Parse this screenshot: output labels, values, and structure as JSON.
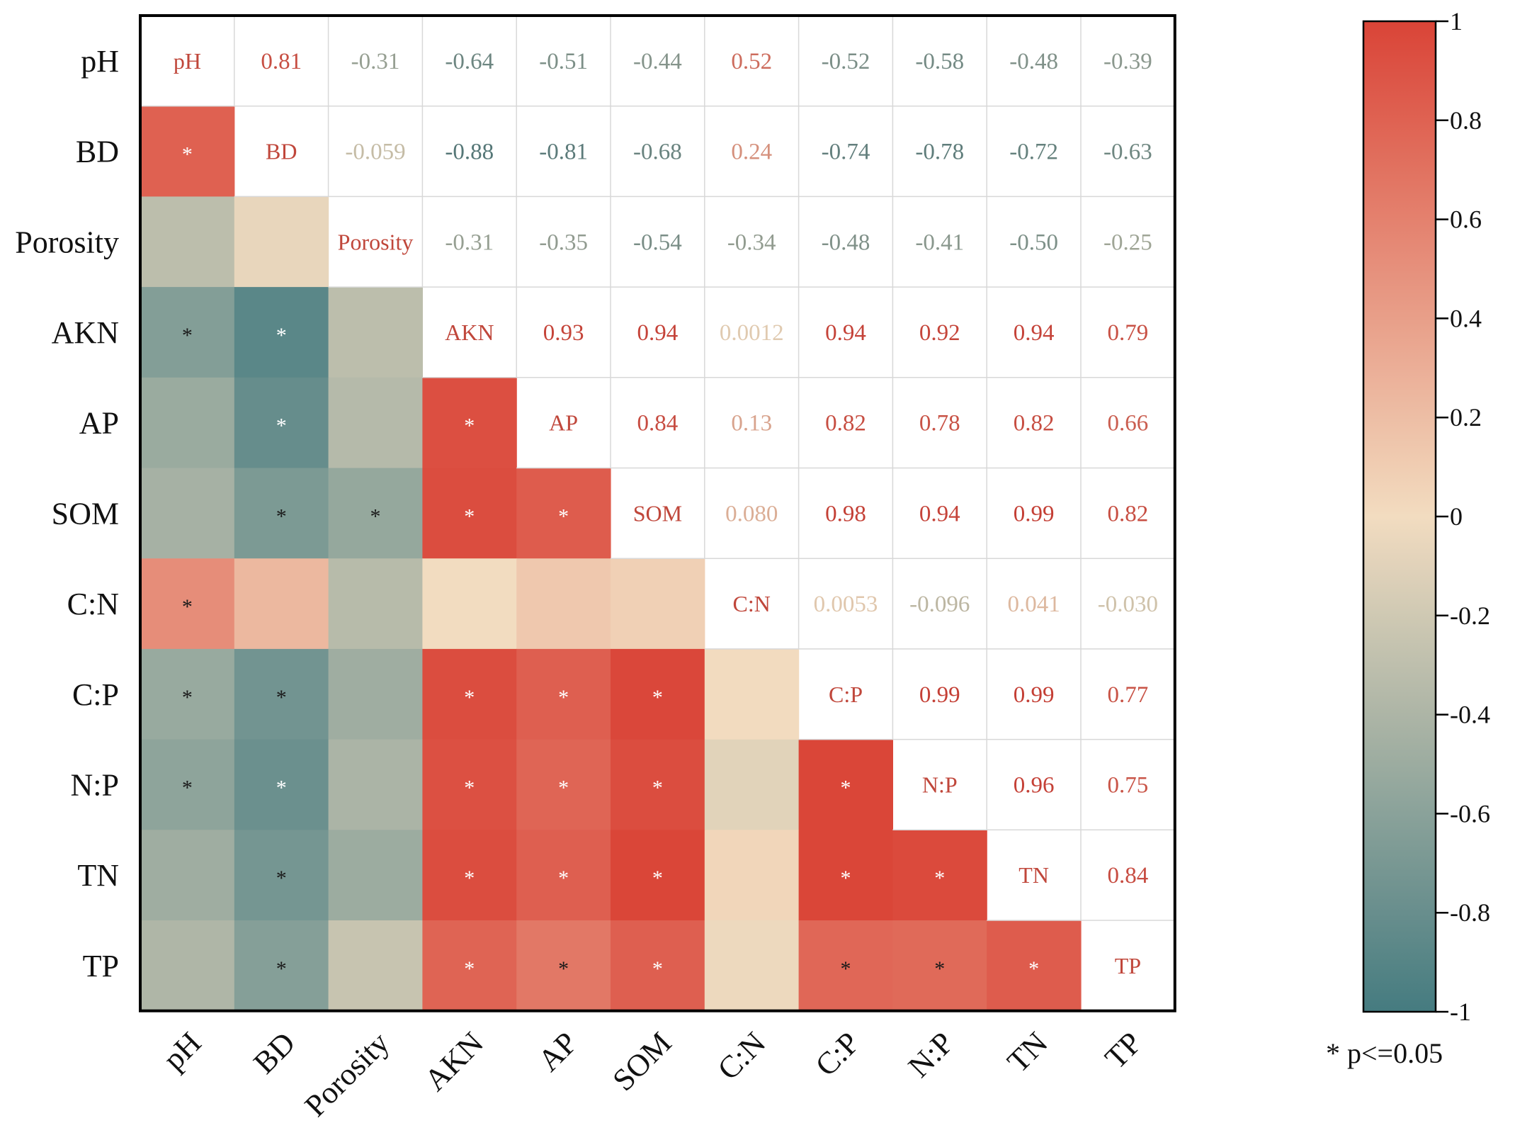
{
  "chart_data": {
    "type": "heatmap",
    "title": "",
    "variables": [
      "pH",
      "BD",
      "Porosity",
      "AKN",
      "AP",
      "SOM",
      "C:N",
      "C:P",
      "N:P",
      "TN",
      "TP"
    ],
    "upper_values": [
      [
        "pH",
        "0.81",
        "-0.31",
        "-0.64",
        "-0.51",
        "-0.44",
        "0.52",
        "-0.52",
        "-0.58",
        "-0.48",
        "-0.39"
      ],
      [
        "",
        "BD",
        "-0.059",
        "-0.88",
        "-0.81",
        "-0.68",
        "0.24",
        "-0.74",
        "-0.78",
        "-0.72",
        "-0.63"
      ],
      [
        "",
        "",
        "Porosity",
        "-0.31",
        "-0.35",
        "-0.54",
        "-0.34",
        "-0.48",
        "-0.41",
        "-0.50",
        "-0.25"
      ],
      [
        "",
        "",
        "",
        "AKN",
        "0.93",
        "0.94",
        "0.0012",
        "0.94",
        "0.92",
        "0.94",
        "0.79"
      ],
      [
        "",
        "",
        "",
        "",
        "AP",
        "0.84",
        "0.13",
        "0.82",
        "0.78",
        "0.82",
        "0.66"
      ],
      [
        "",
        "",
        "",
        "",
        "",
        "SOM",
        "0.080",
        "0.98",
        "0.94",
        "0.99",
        "0.82"
      ],
      [
        "",
        "",
        "",
        "",
        "",
        "",
        "C:N",
        "0.0053",
        "-0.096",
        "0.041",
        "-0.030"
      ],
      [
        "",
        "",
        "",
        "",
        "",
        "",
        "",
        "C:P",
        "0.99",
        "0.99",
        "0.77"
      ],
      [
        "",
        "",
        "",
        "",
        "",
        "",
        "",
        "",
        "N:P",
        "0.96",
        "0.75"
      ],
      [
        "",
        "",
        "",
        "",
        "",
        "",
        "",
        "",
        "",
        "TN",
        "0.84"
      ],
      [
        "",
        "",
        "",
        "",
        "",
        "",
        "",
        "",
        "",
        "",
        "TP"
      ]
    ],
    "significant": [
      [],
      [
        0
      ],
      [],
      [
        0,
        1
      ],
      [
        1,
        3
      ],
      [
        1,
        2,
        3,
        4
      ],
      [
        0
      ],
      [
        0,
        1,
        3,
        4,
        5
      ],
      [
        0,
        1,
        3,
        4,
        5,
        7
      ],
      [
        1,
        3,
        4,
        5,
        7,
        8
      ],
      [
        1,
        3,
        4,
        5,
        7,
        8,
        9
      ]
    ],
    "colorbar": {
      "range": [
        -1,
        1
      ],
      "ticks": [
        "1",
        "0.8",
        "0.6",
        "0.4",
        "0.2",
        "0",
        "-0.2",
        "-0.4",
        "-0.6",
        "-0.8",
        "-1"
      ]
    },
    "colors": {
      "negative": "#457b80",
      "neutral": "#f2dcc0",
      "positive": "#da4437",
      "grid": "#d8d8d8",
      "frame": "#000000"
    },
    "note": "* p<=0.05"
  }
}
